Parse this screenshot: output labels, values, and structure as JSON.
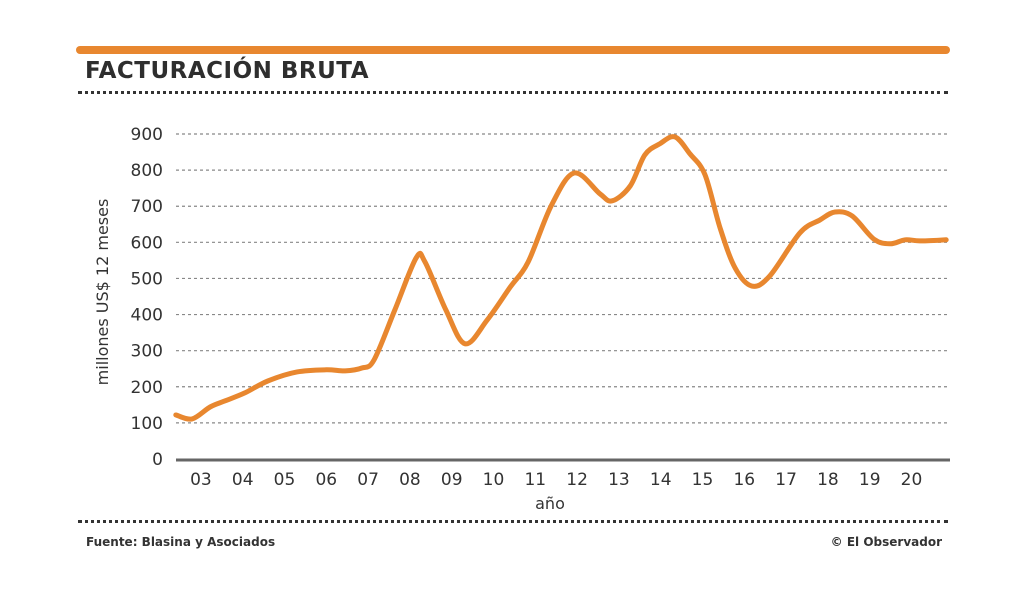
{
  "header": {
    "title": "FACTURACIÓN BRUTA"
  },
  "footer": {
    "source": "Fuente: Blasina y Asociados",
    "credit": "© El Observador"
  },
  "colors": {
    "line": "#e8872f",
    "text": "#333333",
    "grid": "#888888"
  },
  "chart_data": {
    "type": "line",
    "title": "FACTURACIÓN BRUTA",
    "xlabel": "año",
    "ylabel": "millones US$ 12 meses",
    "ylim": [
      0,
      900
    ],
    "xlim": [
      2002.9,
      2021.35
    ],
    "yticks": [
      0,
      100,
      200,
      300,
      400,
      500,
      600,
      700,
      800,
      900
    ],
    "xtick_labels": [
      "03",
      "04",
      "05",
      "06",
      "07",
      "08",
      "09",
      "10",
      "11",
      "12",
      "13",
      "14",
      "15",
      "16",
      "17",
      "18",
      "19",
      "20"
    ],
    "grid": true,
    "series": [
      {
        "name": "Facturación bruta",
        "x": [
          2002.9,
          2003.29,
          2003.72,
          2004.08,
          2004.55,
          2005.1,
          2005.8,
          2006.5,
          2006.95,
          2007.35,
          2007.64,
          2008.14,
          2008.65,
          2008.86,
          2009.36,
          2009.82,
          2010.35,
          2010.9,
          2011.33,
          2011.88,
          2012.43,
          2013.05,
          2013.34,
          2013.77,
          2014.12,
          2014.48,
          2014.84,
          2015.2,
          2015.56,
          2015.92,
          2016.28,
          2016.68,
          2017.11,
          2017.83,
          2018.31,
          2018.67,
          2019.08,
          2019.6,
          2019.99,
          2020.35,
          2020.7,
          2021.33
        ],
        "values": [
          122,
          111,
          144,
          161,
          183,
          216,
          241,
          247,
          244,
          252,
          274,
          413,
          557,
          546,
          413,
          319,
          385,
          476,
          546,
          701,
          792,
          734,
          715,
          756,
          842,
          873,
          892,
          845,
          787,
          640,
          529,
          479,
          507,
          626,
          662,
          684,
          673,
          609,
          596,
          607,
          604,
          607
        ]
      }
    ]
  }
}
